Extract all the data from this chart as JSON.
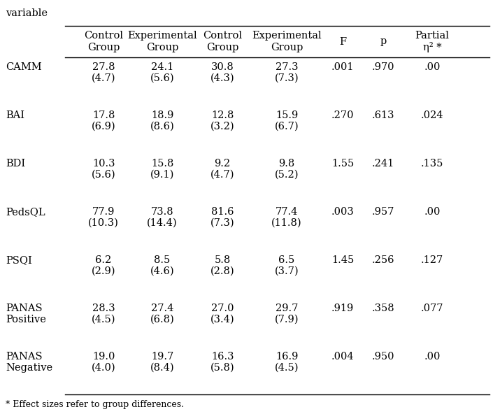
{
  "footnote": "* Effect sizes refer to group differences.",
  "top_label": "variable",
  "col_headers": [
    "Control\nGroup",
    "Experimental\nGroup",
    "Control\nGroup",
    "Experimental\nGroup",
    "F",
    "p",
    "Partial\nη² *"
  ],
  "row_labels": [
    [
      "CAMM",
      ""
    ],
    [
      "BAI",
      ""
    ],
    [
      "BDI",
      ""
    ],
    [
      "PedsQL",
      ""
    ],
    [
      "PSQI",
      ""
    ],
    [
      "PANAS",
      "Positive"
    ],
    [
      "PANAS",
      "Negative"
    ]
  ],
  "means": [
    "27.8",
    "24.1",
    "30.8",
    "27.3",
    "17.8",
    "18.9",
    "12.8",
    "15.9",
    "10.3",
    "15.8",
    "9.2",
    "9.8",
    "77.9",
    "73.8",
    "81.6",
    "77.4",
    "6.2",
    "8.5",
    "5.8",
    "6.5",
    "28.3",
    "27.4",
    "27.0",
    "29.7",
    "19.0",
    "19.7",
    "16.3",
    "16.9"
  ],
  "sds": [
    "(4.7)",
    "(5.6)",
    "(4.3)",
    "(7.3)",
    "(6.9)",
    "(8.6)",
    "(3.2)",
    "(6.7)",
    "(5.6)",
    "(9.1)",
    "(4.7)",
    "(5.2)",
    "(10.3)",
    "(14.4)",
    "(7.3)",
    "(11.8)",
    "(2.9)",
    "(4.6)",
    "(2.8)",
    "(3.7)",
    "(4.5)",
    "(6.8)",
    "(3.4)",
    "(7.9)",
    "(4.0)",
    "(8.4)",
    "(5.8)",
    "(4.5)"
  ],
  "stats": [
    [
      ".001",
      ".970",
      ".00"
    ],
    [
      ".270",
      ".613",
      ".024"
    ],
    [
      "1.55",
      ".241",
      ".135"
    ],
    [
      ".003",
      ".957",
      ".00"
    ],
    [
      "1.45",
      ".256",
      ".127"
    ],
    [
      ".919",
      ".358",
      ".077"
    ],
    [
      ".004",
      ".950",
      ".00"
    ]
  ],
  "background_color": "#ffffff",
  "text_color": "#000000",
  "font_size": 10.5,
  "header_font_size": 10.5
}
